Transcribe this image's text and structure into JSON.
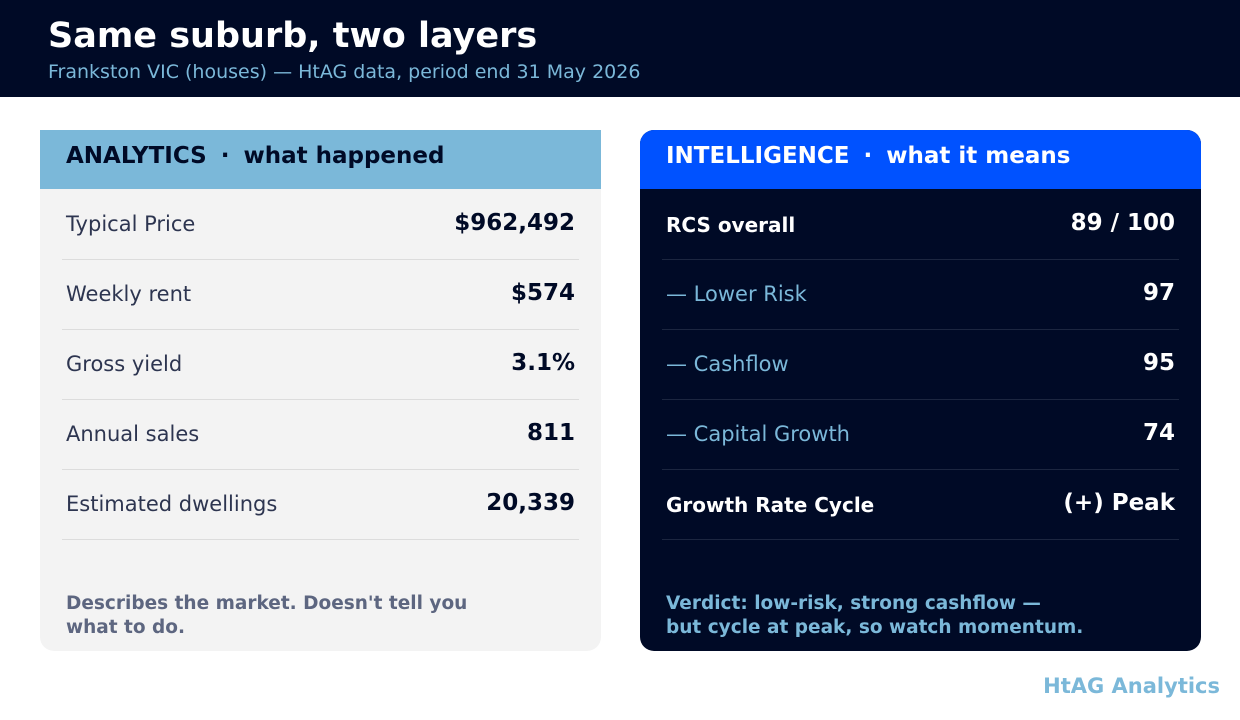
{
  "header": {
    "title": "Same suburb, two layers",
    "subtitle": "Frankston VIC (houses) — HtAG data, period end 31 May 2026"
  },
  "analytics": {
    "heading": "ANALYTICS",
    "separator": "·",
    "subheading": "what happened",
    "rows": [
      {
        "label": "Typical Price",
        "value": "$962,492"
      },
      {
        "label": "Weekly rent",
        "value": "$574"
      },
      {
        "label": "Gross yield",
        "value": "3.1%"
      },
      {
        "label": "Annual sales",
        "value": "811"
      },
      {
        "label": "Estimated dwellings",
        "value": "20,339"
      }
    ],
    "footnote_line1": "Describes the market. Doesn't tell you",
    "footnote_line2": "what to do."
  },
  "intelligence": {
    "heading": "INTELLIGENCE",
    "separator": "·",
    "subheading": "what it means",
    "rows": [
      {
        "label": "RCS overall",
        "value": "89 / 100"
      },
      {
        "label": "— Lower Risk",
        "value": "97"
      },
      {
        "label": "— Cashflow",
        "value": "95"
      },
      {
        "label": "— Capital Growth",
        "value": "74"
      },
      {
        "label": "Growth Rate Cycle",
        "value": "(+) Peak"
      }
    ],
    "footnote_line1": "Verdict: low-risk, strong cashflow —",
    "footnote_line2": "but cycle at peak, so watch momentum."
  },
  "brand": "HtAG Analytics",
  "colors": {
    "navy": "#000a26",
    "light_blue": "#7bb8d9",
    "accent_blue": "#0052ff"
  }
}
